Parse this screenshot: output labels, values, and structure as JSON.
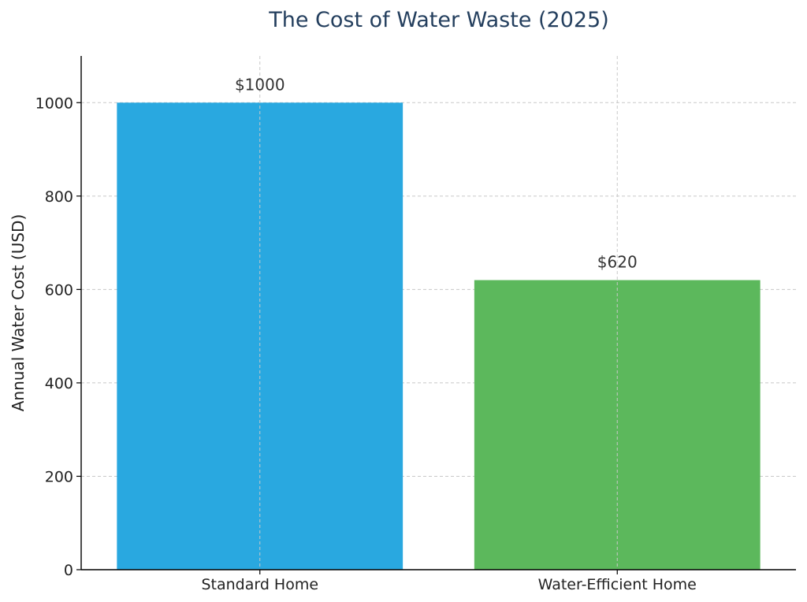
{
  "chart_data": {
    "type": "bar",
    "title": "The Cost of Water Waste (2025)",
    "xlabel": "",
    "ylabel": "Annual Water Cost (USD)",
    "categories": [
      "Standard Home",
      "Water-Efficient Home"
    ],
    "values": [
      1000,
      620
    ],
    "data_labels": [
      "$1000",
      "$620"
    ],
    "colors": [
      "#29a8e0",
      "#5cb85c"
    ],
    "ylim": [
      0,
      1100
    ],
    "yticks": [
      0,
      200,
      400,
      600,
      800,
      1000
    ],
    "ytick_labels": [
      "0",
      "200",
      "400",
      "600",
      "800",
      "1000"
    ],
    "grid": true
  }
}
